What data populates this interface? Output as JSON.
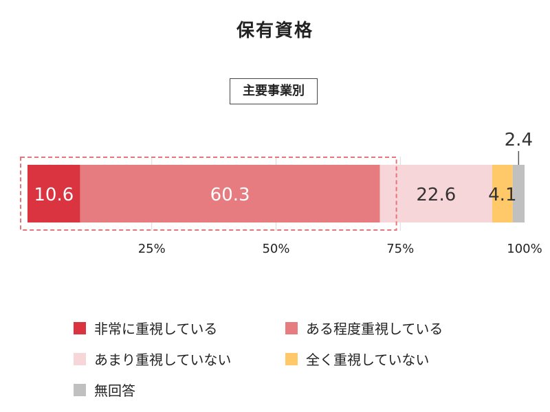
{
  "title": "保有資格",
  "subtitle": "主要事業別",
  "chart_data": {
    "type": "bar",
    "orientation": "horizontal-stacked",
    "xlim": [
      0,
      100
    ],
    "ticks": [
      "25%",
      "50%",
      "75%",
      "100%"
    ],
    "tick_values": [
      25,
      50,
      75,
      100
    ],
    "grid": true,
    "legend_position": "bottom",
    "highlight_range": [
      0,
      70.9
    ],
    "series": [
      {
        "name": "非常に重視している",
        "value": 10.6,
        "label": "10.6",
        "color": "#d9343f",
        "label_color": "#ffffff"
      },
      {
        "name": "ある程度重視している",
        "value": 60.3,
        "label": "60.3",
        "color": "#e67b80",
        "label_color": "#ffffff"
      },
      {
        "name": "あまり重視していない",
        "value": 22.6,
        "label": "22.6",
        "color": "#f7d6da",
        "label_color": "#333333"
      },
      {
        "name": "全く重視していない",
        "value": 4.1,
        "label": "4.1",
        "color": "#ffc969",
        "label_color": "#333333"
      },
      {
        "name": "無回答",
        "value": 2.4,
        "label": "2.4",
        "color": "#c0c0c0",
        "label_color": "#333333"
      }
    ]
  }
}
